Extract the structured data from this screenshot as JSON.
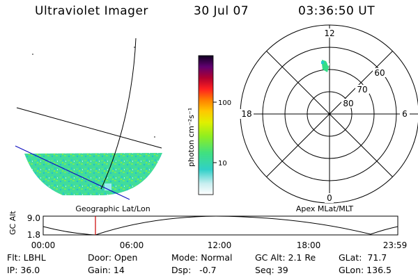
{
  "header": {
    "title": "Ultraviolet Imager",
    "date": "30 Jul 07",
    "time": "03:36:50 UT"
  },
  "colorbar": {
    "label": "photon cm⁻²s⁻¹",
    "ticks": [
      "100",
      "10"
    ]
  },
  "map_left": {
    "caption": "Geographic Lat/Lon"
  },
  "polar": {
    "caption": "Apex MLat/MLT",
    "mlt": {
      "top": "12",
      "left": "18",
      "right": "6",
      "bottom": "0"
    },
    "mlat": [
      "60",
      "70",
      "80"
    ]
  },
  "altitude_plot": {
    "ylabel": "GC Alt",
    "yticks": [
      "9.0",
      "1.8"
    ],
    "xticks": [
      "00:00",
      "06:00",
      "12:00",
      "18:00",
      "23:59"
    ]
  },
  "info": {
    "flt": "Flt: LBHL",
    "door": "Door: Open",
    "mode": "Mode: Normal",
    "gcalt": "GC Alt: 2.1 Re",
    "glat": "GLat:  71.7",
    "ip": "IP: 36.0",
    "gain": "Gain: 14",
    "dsp": "Dsp:   -0.7",
    "seq": "Seq: 39",
    "glon": "GLon: 136.5"
  },
  "colors": {
    "marker": "#cc0000",
    "aurora_green": "#33dd88",
    "aurora_cyan": "#22cccc"
  }
}
